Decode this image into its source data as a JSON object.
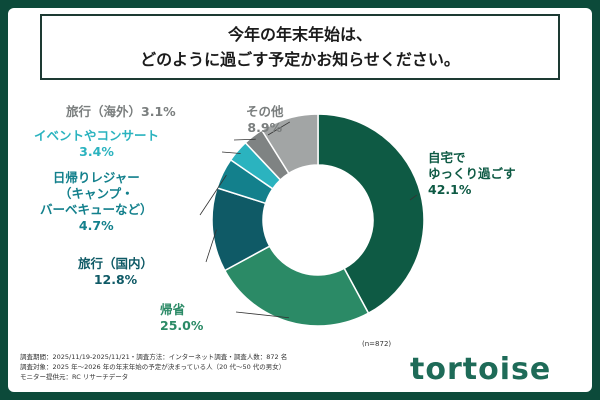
{
  "chart_data": {
    "type": "donut",
    "title": "今年の年末年始は、\nどのように過ごす予定かお知らせください。",
    "categories": [
      "自宅で\nゆっくり過ごす",
      "帰省",
      "旅行（国内）",
      "日帰りレジャー\n（キャンプ・\nバーベキューなど）",
      "イベントやコンサート",
      "旅行（海外）",
      "その他"
    ],
    "values": [
      42.1,
      25.0,
      12.8,
      4.7,
      3.4,
      3.1,
      8.9
    ],
    "value_labels": [
      "42.1%",
      "25.0%",
      "12.8%",
      "4.7%",
      "3.4%",
      "3.1%",
      "8.9%"
    ],
    "colors": [
      "#0e5a44",
      "#2b8a66",
      "#0f5a66",
      "#13808c",
      "#2bb3bf",
      "#7f8383",
      "#a2a5a5"
    ],
    "sample": "(n=872)"
  },
  "notes": [
    "調査期間：2025/11/19-2025/11/21・調査方法：インターネット調査・調査人数：872 名",
    "調査対象：2025 年～2026 年の年末年始の予定が決まっている人（20 代～50 代の男女）",
    "モニター提供元：RC リサーチデータ"
  ],
  "logo": "tortoise"
}
